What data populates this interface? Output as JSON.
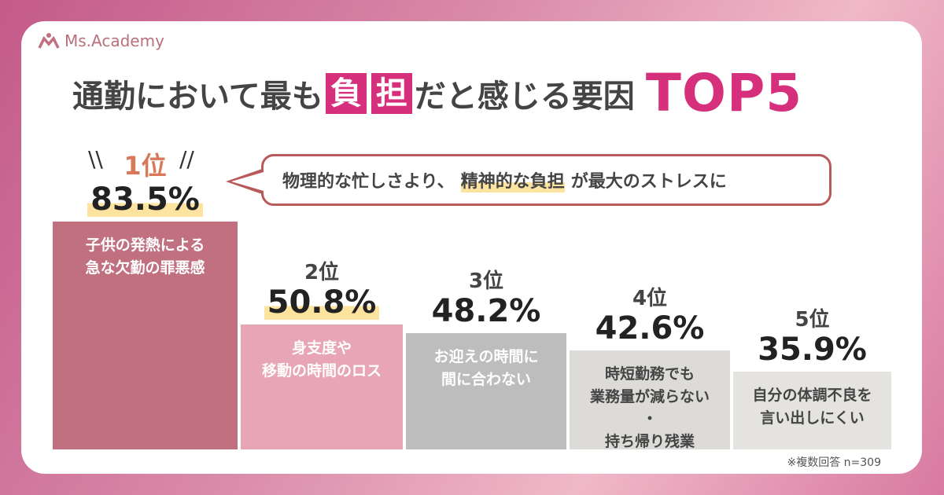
{
  "brand": "Ms.Academy",
  "title": {
    "pre": "通勤において最も",
    "hl1": "負",
    "hl2": "担",
    "post": "だと感じる要因",
    "top": "TOP5"
  },
  "callout": {
    "pre": "物理的な忙しさより、",
    "mark": "精神的な負担",
    "post": "が最大のストレスに"
  },
  "chart_data": {
    "type": "bar",
    "categories": [
      "子供の発熱による急な欠勤の罪悪感",
      "身支度や移動の時間のロス",
      "お迎えの時間に間に合わない",
      "時短勤務でも業務量が減らない・持ち帰り残業",
      "自分の体調不良を言い出しにくい"
    ],
    "ranks": [
      "1位",
      "2位",
      "3位",
      "4位",
      "5位"
    ],
    "values": [
      83.5,
      50.8,
      48.2,
      42.6,
      35.9
    ],
    "value_labels": [
      "83.5%",
      "50.8%",
      "48.2%",
      "42.6%",
      "35.9%"
    ],
    "bar_texts": [
      [
        "子供の発熱による",
        "急な欠勤の罪悪感"
      ],
      [
        "身支度や",
        "移動の時間のロス"
      ],
      [
        "お迎えの時間に",
        "間に合わない"
      ],
      [
        "時短勤務でも",
        "業務量が減らない",
        "・",
        "持ち帰り残業"
      ],
      [
        "自分の体調不良を",
        "言い出しにくい"
      ]
    ],
    "colors": [
      "#c0707f",
      "#e8a5b5",
      "#bdbdbd",
      "#dcdbd8",
      "#e5e3e0"
    ],
    "text_colors": [
      "#ffffff",
      "#ffffff",
      "#ffffff",
      "#444444",
      "#444444"
    ]
  },
  "note": "※複数回答 n=309"
}
